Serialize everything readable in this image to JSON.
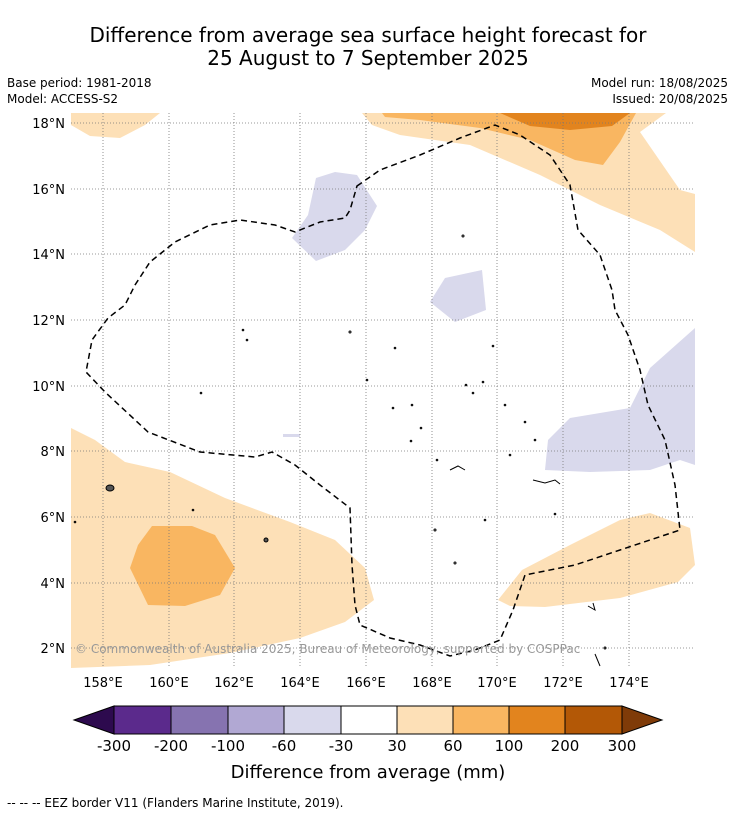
{
  "title": {
    "line1": "Difference from average sea surface height forecast for",
    "line2": "25 August to 7 September 2025"
  },
  "meta": {
    "base_period": "Base period: 1981-2018",
    "model": "Model: ACCESS-S2",
    "model_run": "Model run: 18/08/2025",
    "issued": "Issued: 20/08/2025"
  },
  "map": {
    "lon_labels": [
      "158°E",
      "160°E",
      "162°E",
      "164°E",
      "166°E",
      "168°E",
      "170°E",
      "172°E",
      "174°E"
    ],
    "lat_labels": [
      "18°N",
      "16°N",
      "14°N",
      "12°N",
      "10°N",
      "8°N",
      "6°N",
      "4°N",
      "2°N"
    ],
    "copyright": "© Commonwealth of Australia 2025, Bureau of Meteorology, supported by COSPPac"
  },
  "colorbar": {
    "ticks": [
      "-300",
      "-200",
      "-100",
      "-60",
      "-30",
      "30",
      "60",
      "100",
      "200",
      "300"
    ],
    "colors": {
      "under": "#2d0a4e",
      "c1": "#5b2a8c",
      "c2": "#8673b0",
      "c3": "#b1a8d3",
      "c4": "#d9d9ec",
      "c5": "#ffffff",
      "c6": "#fde0b7",
      "c7": "#f9b661",
      "c8": "#e2841e",
      "c9": "#b35806",
      "over": "#7f3b08"
    },
    "label": "Difference from average (mm)"
  },
  "footer": "--  --  -- EEZ border V11 (Flanders Marine Institute, 2019)."
}
